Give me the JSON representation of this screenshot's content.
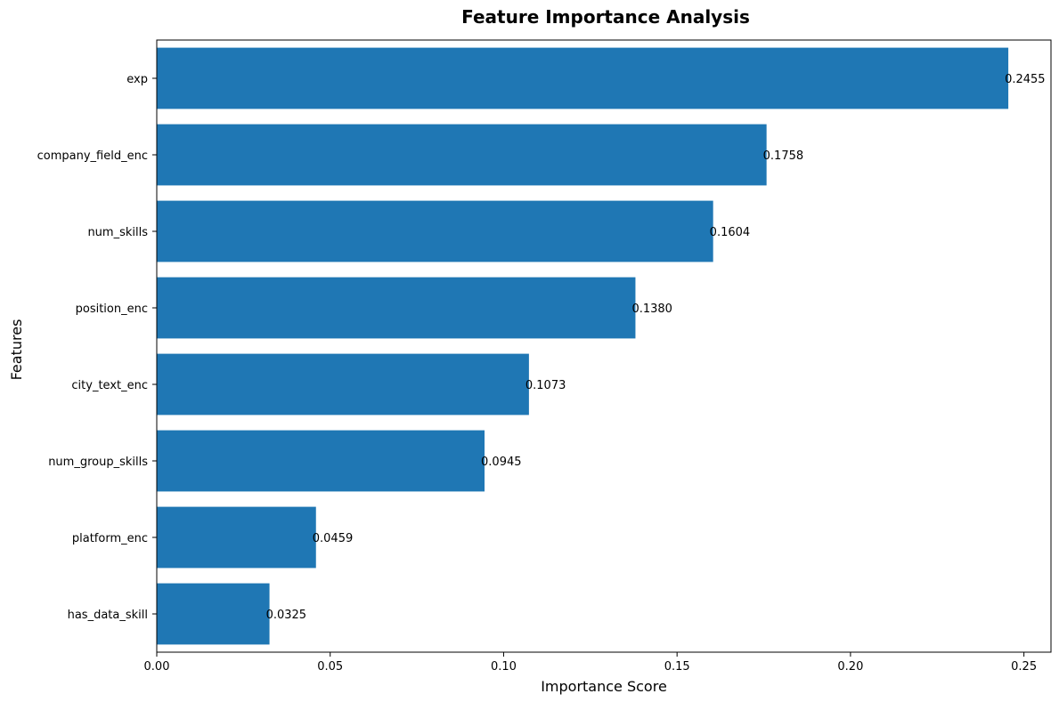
{
  "chart_data": {
    "type": "bar",
    "orientation": "horizontal",
    "title": "Feature Importance Analysis",
    "xlabel": "Importance Score",
    "ylabel": "Features",
    "categories": [
      "exp",
      "company_field_enc",
      "num_skills",
      "position_enc",
      "city_text_enc",
      "num_group_skills",
      "platform_enc",
      "has_data_skill"
    ],
    "values": [
      0.2455,
      0.1758,
      0.1604,
      0.138,
      0.1073,
      0.0945,
      0.0459,
      0.0325
    ],
    "value_labels": [
      "0.2455",
      "0.1758",
      "0.1604",
      "0.1380",
      "0.1073",
      "0.0945",
      "0.0459",
      "0.0325"
    ],
    "xlim": [
      0,
      0.2578
    ],
    "xticks": [
      0.0,
      0.05,
      0.1,
      0.15,
      0.2,
      0.25
    ],
    "xtick_labels": [
      "0.00",
      "0.05",
      "0.10",
      "0.15",
      "0.20",
      "0.25"
    ],
    "grid": false,
    "bar_color": "#1f77b4"
  }
}
